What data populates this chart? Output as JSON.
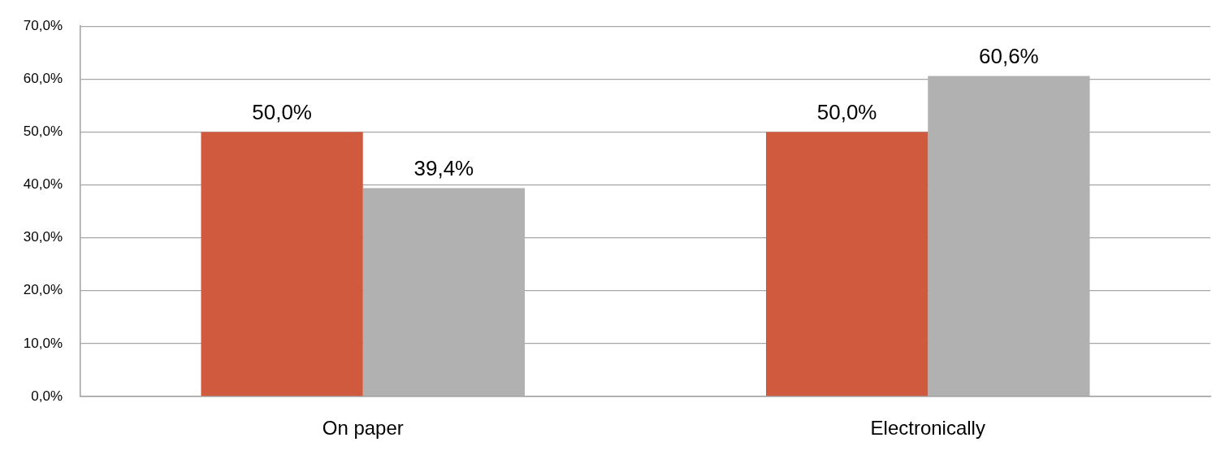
{
  "chart_data": {
    "type": "bar",
    "categories": [
      "On paper",
      "Electronically"
    ],
    "series": [
      {
        "color": "#d05a3e",
        "values": [
          50.0,
          50.0
        ],
        "value_labels": [
          "50,0%",
          "50,0%"
        ]
      },
      {
        "color": "#b1b1b1",
        "values": [
          39.4,
          60.6
        ],
        "value_labels": [
          "39,4%",
          "60,6%"
        ]
      }
    ],
    "ylim": [
      0,
      70
    ],
    "yticks": [
      {
        "value": 0,
        "label": "0,0%"
      },
      {
        "value": 10,
        "label": "10,0%"
      },
      {
        "value": 20,
        "label": "20,0%"
      },
      {
        "value": 30,
        "label": "30,0%"
      },
      {
        "value": 40,
        "label": "40,0%"
      },
      {
        "value": 50,
        "label": "50,0%"
      },
      {
        "value": 60,
        "label": "60,0%"
      },
      {
        "value": 70,
        "label": "70,0%"
      }
    ],
    "grid": "y"
  }
}
